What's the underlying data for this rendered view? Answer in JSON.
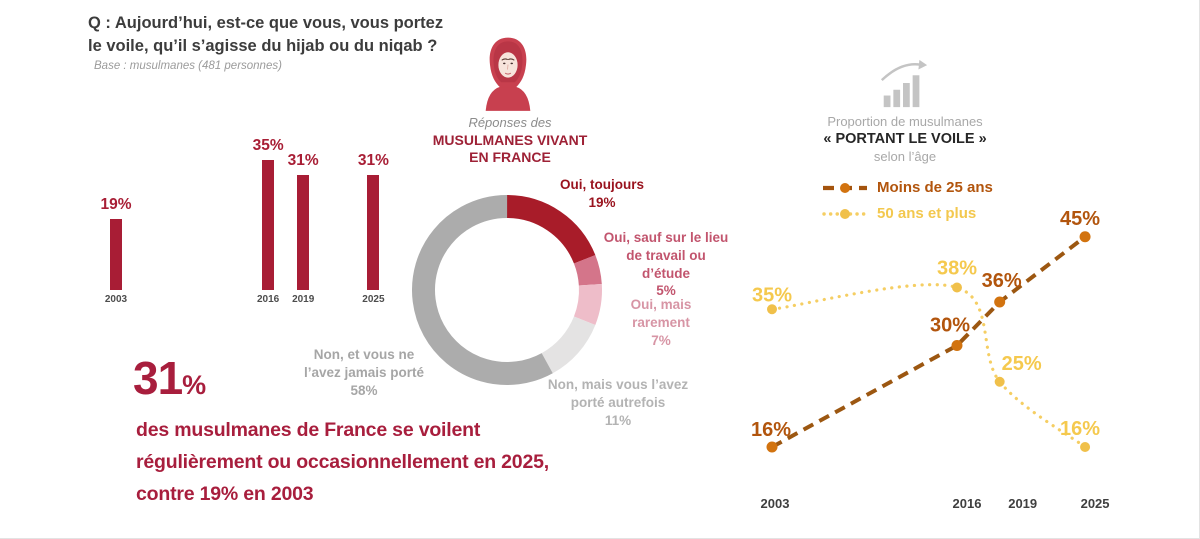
{
  "question": {
    "line1": "Q : Aujourd’hui, est-ce que vous, vous portez",
    "line2": "le voile, qu’il s’agisse du hijab ou du niqab ?",
    "base": "Base : musulmanes (481 personnes)"
  },
  "center": {
    "icon": "woman-hijab-icon",
    "subtitle": "Réponses des",
    "title_line1": "MUSULMANES VIVANT",
    "title_line2": "EN FRANCE"
  },
  "statement": {
    "big_number": "31",
    "big_percent": "%",
    "line1": "des musulmanes de France se voilent",
    "line2": "régulièrement ou occasionnellement en 2025,",
    "line3": "contre 19% en 2003"
  },
  "right_header": {
    "icon": "growth-chart-icon",
    "line1": "Proportion de musulmanes",
    "line2": "« PORTANT LE VOILE »",
    "line3": "selon l’âge"
  },
  "colors": {
    "crimson": "#a81d35",
    "statement_red": "#a81e3d",
    "question_gray": "#3c3c3c",
    "muted_gray": "#a6a6a6",
    "dark_orange_line": "#9c5711",
    "dark_orange_marker": "#d2730f",
    "dark_orange_label": "#b2550d",
    "yellow_line": "#f5ce63",
    "yellow_marker": "#f0c04a",
    "yellow_label": "#f5c94e"
  },
  "chart_data": [
    {
      "type": "bar",
      "title": "",
      "categories": [
        "2003",
        "2016",
        "2019",
        "2025"
      ],
      "values": [
        19,
        35,
        31,
        31
      ],
      "unit": "%",
      "bar_color": "#a81d35",
      "ylim": [
        0,
        40
      ]
    },
    {
      "type": "pie",
      "donut": true,
      "start_angle_deg": 0,
      "direction": "clockwise",
      "segments": [
        {
          "label": "Oui, toujours",
          "value": 19,
          "color": "#a81c29",
          "annotation": "Oui, toujours\n19%"
        },
        {
          "label": "Oui, sauf sur le lieu de travail ou d’étude",
          "value": 5,
          "color": "#d4758a",
          "annotation": "Oui, sauf sur le lieu\nde travail ou\nd’étude\n5%"
        },
        {
          "label": "Oui, mais rarement",
          "value": 7,
          "color": "#eebdc9",
          "annotation": "Oui, mais\nrarement\n7%"
        },
        {
          "label": "Non, mais vous l’avez porté autrefois",
          "value": 11,
          "color": "#e4e3e3",
          "annotation": "Non, mais vous l’avez\nporté autrefois\n11%"
        },
        {
          "label": "Non, et vous ne l’avez jamais porté",
          "value": 58,
          "color": "#acacac",
          "annotation": "Non, et vous ne\nl’avez jamais porté\n58%"
        }
      ]
    },
    {
      "type": "line",
      "x": [
        2003,
        2016,
        2019,
        2025
      ],
      "x_labels": [
        "2003",
        "2016",
        "2019",
        "2025"
      ],
      "unit": "%",
      "series": [
        {
          "name": "Moins de 25 ans",
          "values": [
            16,
            30,
            36,
            45
          ],
          "line_color": "#9c5711",
          "marker_color": "#d2730f",
          "label_color": "#b2550d",
          "style": "dashed"
        },
        {
          "name": "50 ans et plus",
          "values": [
            35,
            38,
            25,
            16
          ],
          "line_color": "#f5ce63",
          "marker_color": "#f0c04a",
          "label_color": "#f5c94e",
          "style": "dotted"
        }
      ],
      "legend_position": "top"
    }
  ]
}
